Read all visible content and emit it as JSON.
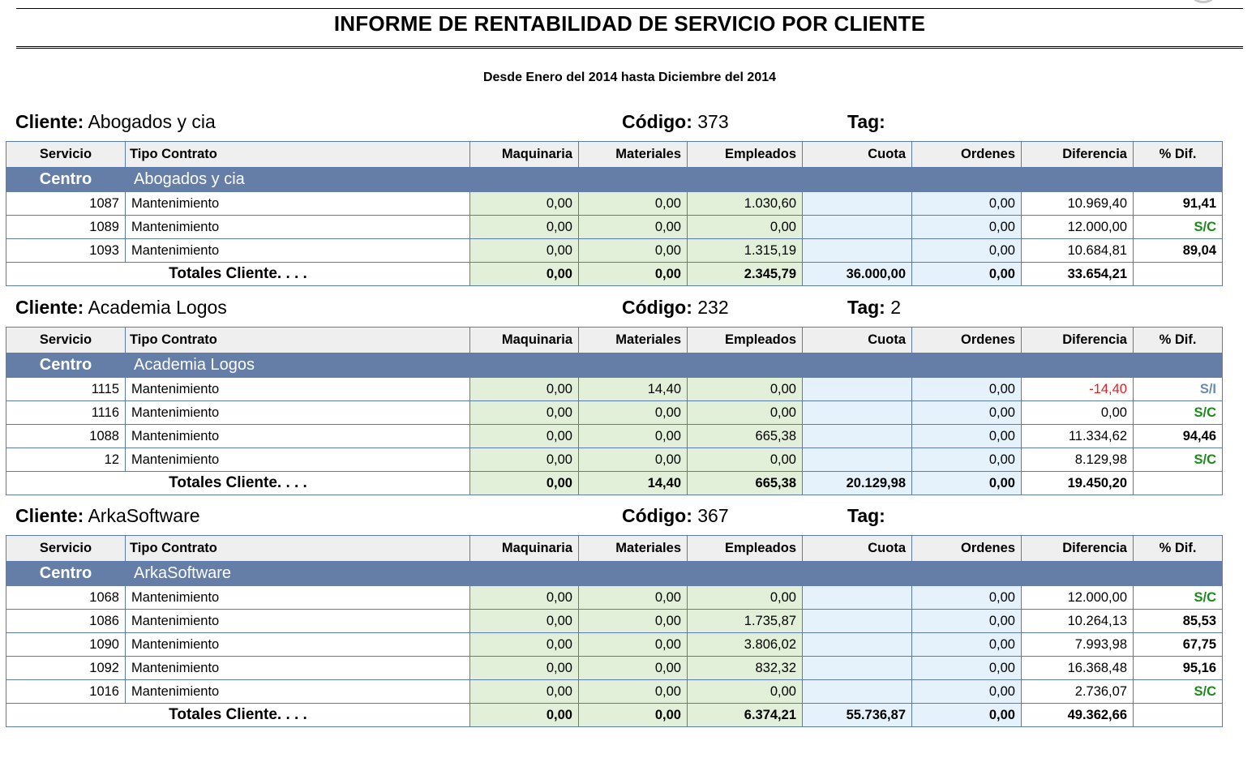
{
  "report": {
    "title": "INFORME DE RENTABILIDAD DE SERVICIO POR CLIENTE",
    "period": "Desde Enero del 2014 hasta Diciembre del 2014"
  },
  "labels": {
    "client": "Cliente:",
    "code": "Código:",
    "tag": "Tag:",
    "centro": "Centro",
    "totals": "Totales Cliente. . . ."
  },
  "columns": {
    "servicio": "Servicio",
    "tipo": "Tipo Contrato",
    "maquinaria": "Maquinaria",
    "materiales": "Materiales",
    "empleados": "Empleados",
    "cuota": "Cuota",
    "ordenes": "Ordenes",
    "diferencia": "Diferencia",
    "pct": "% Dif."
  },
  "clients": [
    {
      "name": "Abogados y cia",
      "code": "373",
      "tag": "",
      "centro": "Abogados y cia",
      "rows": [
        {
          "servicio": "1087",
          "tipo": "Mantenimiento",
          "maquinaria": "0,00",
          "materiales": "0,00",
          "empleados": "1.030,60",
          "cuota": "",
          "ordenes": "0,00",
          "diferencia": "10.969,40",
          "pct": "91,41"
        },
        {
          "servicio": "1089",
          "tipo": "Mantenimiento",
          "maquinaria": "0,00",
          "materiales": "0,00",
          "empleados": "0,00",
          "cuota": "",
          "ordenes": "0,00",
          "diferencia": "12.000,00",
          "pct": "S/C"
        },
        {
          "servicio": "1093",
          "tipo": "Mantenimiento",
          "maquinaria": "0,00",
          "materiales": "0,00",
          "empleados": "1.315,19",
          "cuota": "",
          "ordenes": "0,00",
          "diferencia": "10.684,81",
          "pct": "89,04"
        }
      ],
      "totals": {
        "maquinaria": "0,00",
        "materiales": "0,00",
        "empleados": "2.345,79",
        "cuota": "36.000,00",
        "ordenes": "0,00",
        "diferencia": "33.654,21"
      }
    },
    {
      "name": "Academia Logos",
      "code": "232",
      "tag": "2",
      "centro": "Academia Logos",
      "rows": [
        {
          "servicio": "1115",
          "tipo": "Mantenimiento",
          "maquinaria": "0,00",
          "materiales": "14,40",
          "empleados": "0,00",
          "cuota": "",
          "ordenes": "0,00",
          "diferencia": "-14,40",
          "pct": "S/I"
        },
        {
          "servicio": "1116",
          "tipo": "Mantenimiento",
          "maquinaria": "0,00",
          "materiales": "0,00",
          "empleados": "0,00",
          "cuota": "",
          "ordenes": "0,00",
          "diferencia": "0,00",
          "pct": "S/C"
        },
        {
          "servicio": "1088",
          "tipo": "Mantenimiento",
          "maquinaria": "0,00",
          "materiales": "0,00",
          "empleados": "665,38",
          "cuota": "",
          "ordenes": "0,00",
          "diferencia": "11.334,62",
          "pct": "94,46"
        },
        {
          "servicio": "12",
          "tipo": "Mantenimiento",
          "maquinaria": "0,00",
          "materiales": "0,00",
          "empleados": "0,00",
          "cuota": "",
          "ordenes": "0,00",
          "diferencia": "8.129,98",
          "pct": "S/C"
        }
      ],
      "totals": {
        "maquinaria": "0,00",
        "materiales": "14,40",
        "empleados": "665,38",
        "cuota": "20.129,98",
        "ordenes": "0,00",
        "diferencia": "19.450,20"
      }
    },
    {
      "name": "ArkaSoftware",
      "code": "367",
      "tag": "",
      "centro": "ArkaSoftware",
      "rows": [
        {
          "servicio": "1068",
          "tipo": "Mantenimiento",
          "maquinaria": "0,00",
          "materiales": "0,00",
          "empleados": "0,00",
          "cuota": "",
          "ordenes": "0,00",
          "diferencia": "12.000,00",
          "pct": "S/C"
        },
        {
          "servicio": "1086",
          "tipo": "Mantenimiento",
          "maquinaria": "0,00",
          "materiales": "0,00",
          "empleados": "1.735,87",
          "cuota": "",
          "ordenes": "0,00",
          "diferencia": "10.264,13",
          "pct": "85,53"
        },
        {
          "servicio": "1090",
          "tipo": "Mantenimiento",
          "maquinaria": "0,00",
          "materiales": "0,00",
          "empleados": "3.806,02",
          "cuota": "",
          "ordenes": "0,00",
          "diferencia": "7.993,98",
          "pct": "67,75"
        },
        {
          "servicio": "1092",
          "tipo": "Mantenimiento",
          "maquinaria": "0,00",
          "materiales": "0,00",
          "empleados": "832,32",
          "cuota": "",
          "ordenes": "0,00",
          "diferencia": "16.368,48",
          "pct": "95,16"
        },
        {
          "servicio": "1016",
          "tipo": "Mantenimiento",
          "maquinaria": "0,00",
          "materiales": "0,00",
          "empleados": "0,00",
          "cuota": "",
          "ordenes": "0,00",
          "diferencia": "2.736,07",
          "pct": "S/C"
        }
      ],
      "totals": {
        "maquinaria": "0,00",
        "materiales": "0,00",
        "empleados": "6.374,21",
        "cuota": "55.736,87",
        "ordenes": "0,00",
        "diferencia": "49.362,66"
      }
    }
  ],
  "colors": {
    "header_bg": "#efefef",
    "centro_bg": "#647ea8",
    "cost_bg": "#e2efd9",
    "income_bg": "#e6f2fb",
    "border": "#5a7ab0",
    "pct_no_quota": "#1a8a1a",
    "pct_no_income": "#6b8ab3",
    "negative": "#e02020"
  }
}
